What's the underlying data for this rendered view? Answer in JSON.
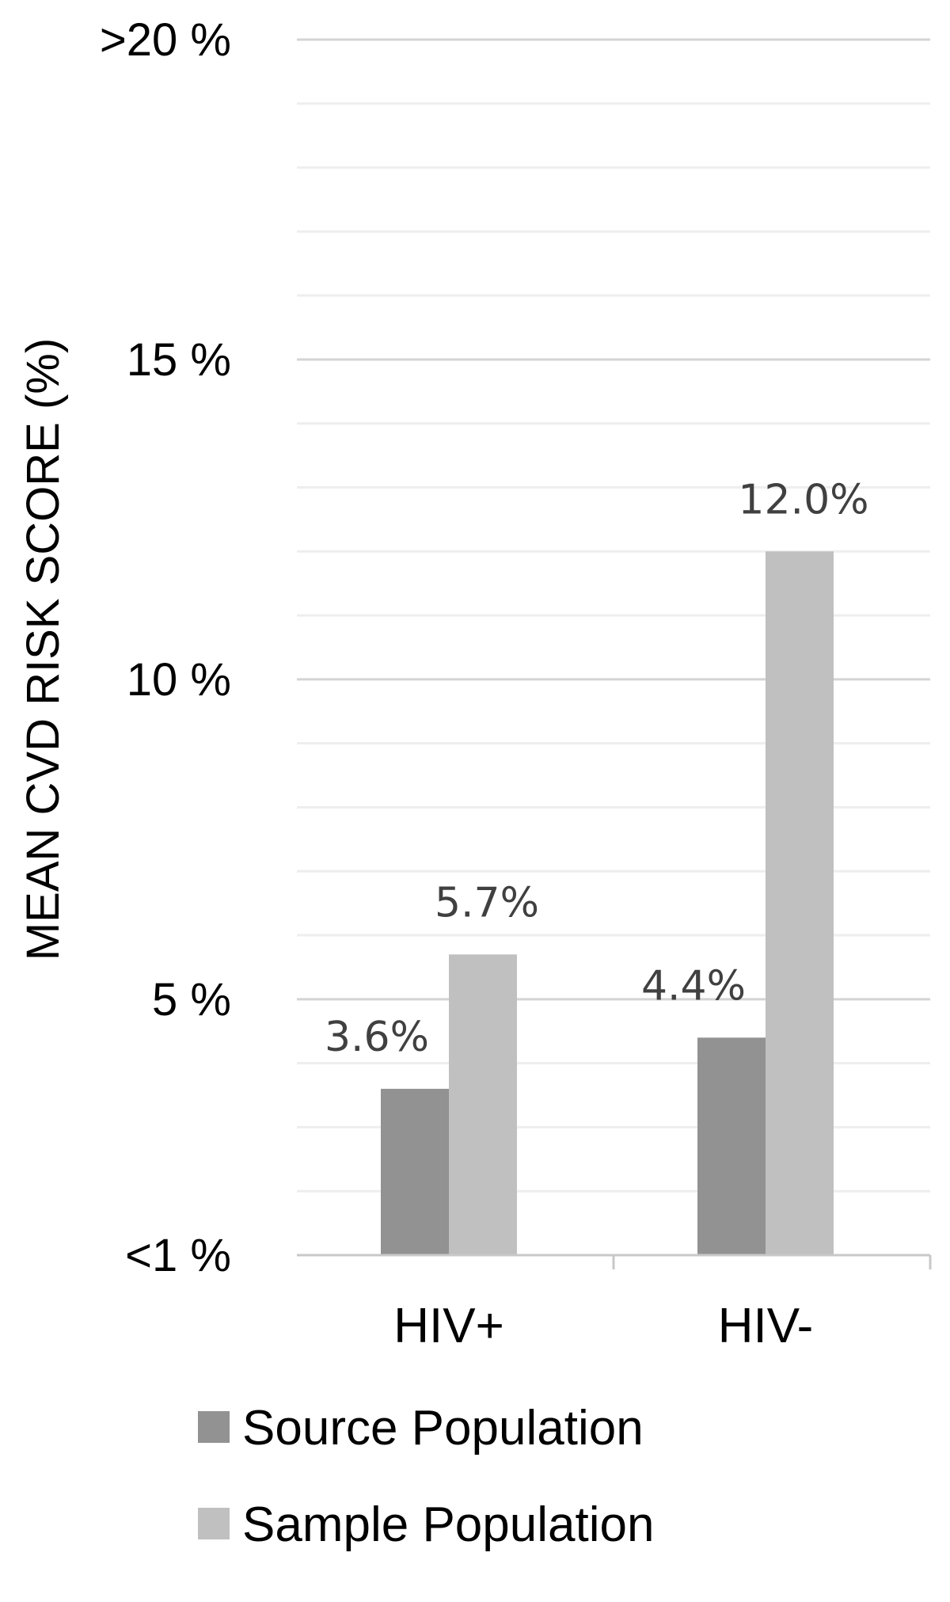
{
  "chart_data": {
    "type": "bar",
    "title": "",
    "ylabel": "MEAN CVD RISK SCORE (%)",
    "xlabel": "",
    "categories": [
      "HIV+",
      "HIV-"
    ],
    "series": [
      {
        "name": "Source Population",
        "values": [
          3.6,
          4.4
        ],
        "labels": [
          "3.6%",
          "4.4%"
        ],
        "color": "#929292"
      },
      {
        "name": "Sample Population",
        "values": [
          5.7,
          12.0
        ],
        "labels": [
          "5.7%",
          "12.0%"
        ],
        "color": "#c0c0c0"
      }
    ],
    "ylim": [
      1,
      20
    ],
    "y_ticks": [
      {
        "value": 1,
        "label": "<1 %"
      },
      {
        "value": 5,
        "label": "5 %"
      },
      {
        "value": 10,
        "label": "10 %"
      },
      {
        "value": 15,
        "label": "15 %"
      },
      {
        "value": 20,
        "label": ">20 %"
      }
    ],
    "minor_grid_step": 1,
    "grid": true,
    "legend_position": "bottom"
  }
}
